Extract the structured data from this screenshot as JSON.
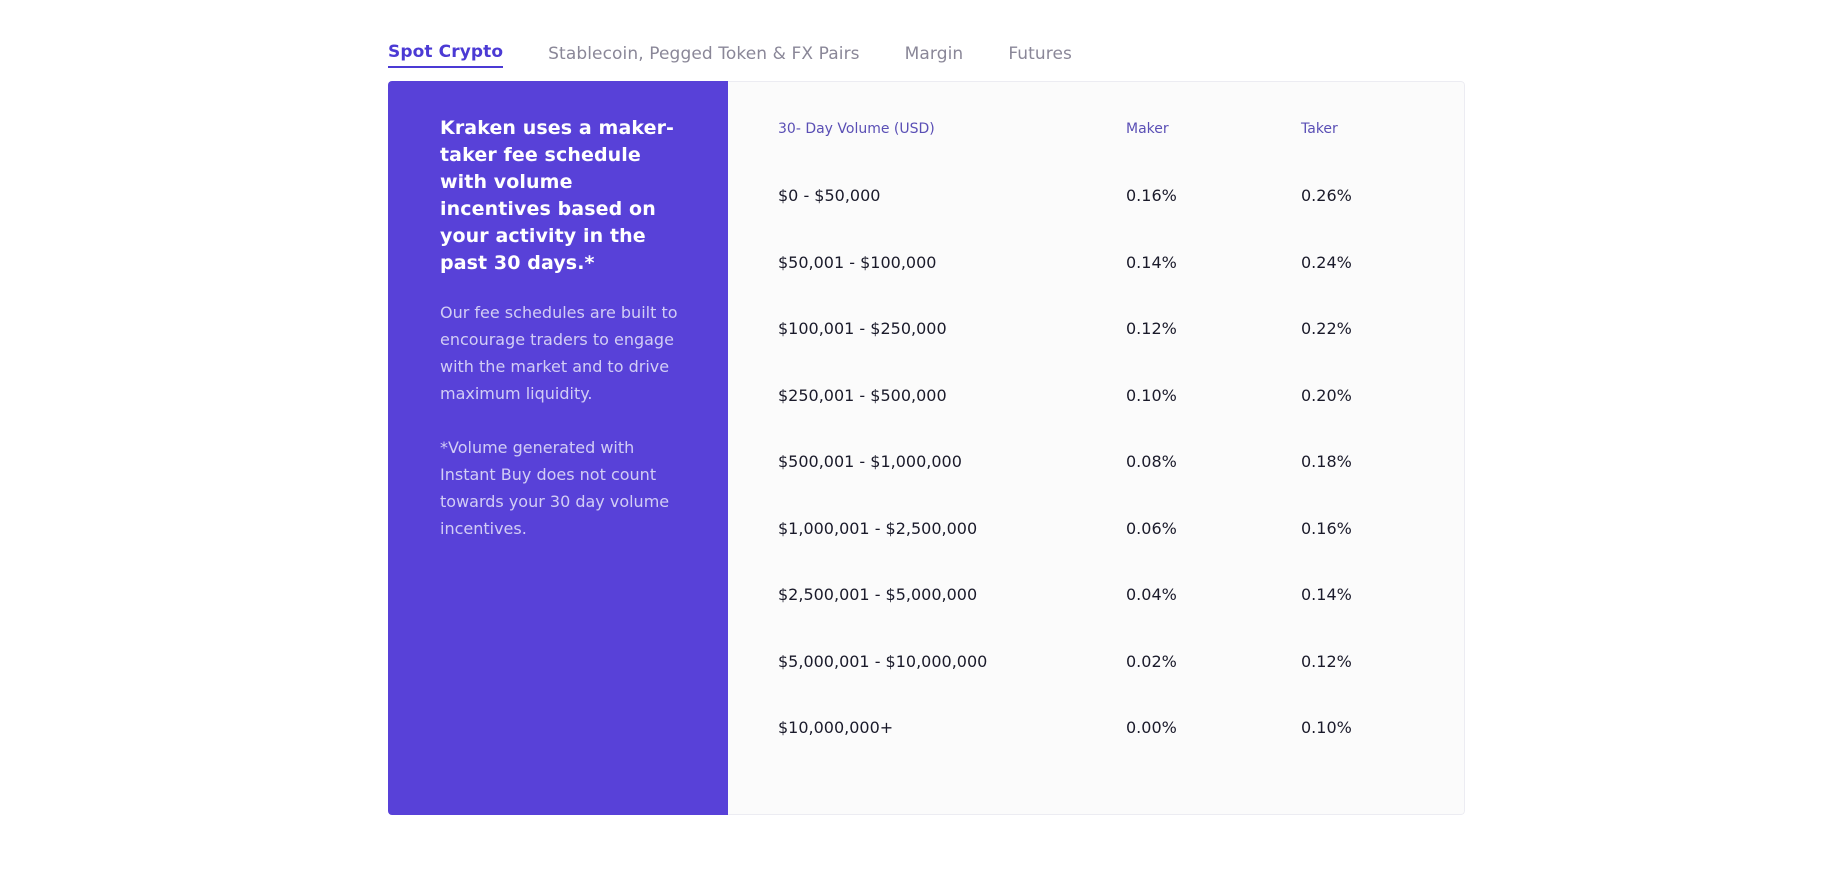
{
  "tabs": [
    {
      "label": "Spot Crypto",
      "active": true
    },
    {
      "label": "Stablecoin, Pegged Token & FX Pairs",
      "active": false
    },
    {
      "label": "Margin",
      "active": false
    },
    {
      "label": "Futures",
      "active": false
    }
  ],
  "promo": {
    "headline": "Kraken uses a maker-taker fee schedule with volume incentives based on your activity in the past 30 days.*",
    "body": "Our fee schedules are built to encourage traders to engage with the market and to drive maximum liquidity.",
    "note": "*Volume generated with Instant Buy does not count towards your 30 day volume incentives."
  },
  "table": {
    "headers": {
      "volume": "30- Day Volume (USD)",
      "maker": "Maker",
      "taker": "Taker"
    },
    "rows": [
      {
        "volume": "$0 - $50,000",
        "maker": "0.16%",
        "taker": "0.26%"
      },
      {
        "volume": "$50,001 - $100,000",
        "maker": "0.14%",
        "taker": "0.24%"
      },
      {
        "volume": "$100,001 - $250,000",
        "maker": "0.12%",
        "taker": "0.22%"
      },
      {
        "volume": "$250,001 - $500,000",
        "maker": "0.10%",
        "taker": "0.20%"
      },
      {
        "volume": "$500,001 - $1,000,000",
        "maker": "0.08%",
        "taker": "0.18%"
      },
      {
        "volume": "$1,000,001 - $2,500,000",
        "maker": "0.06%",
        "taker": "0.16%"
      },
      {
        "volume": "$2,500,001 - $5,000,000",
        "maker": "0.04%",
        "taker": "0.14%"
      },
      {
        "volume": "$5,000,001 - $10,000,000",
        "maker": "0.02%",
        "taker": "0.12%"
      },
      {
        "volume": "$10,000,000+",
        "maker": "0.00%",
        "taker": "0.10%"
      }
    ]
  },
  "colors": {
    "accent": "#5841d8",
    "tab_active": "#4b3ad4",
    "tab_inactive": "#8a8798",
    "panel_bg": "#fbfbfb"
  }
}
